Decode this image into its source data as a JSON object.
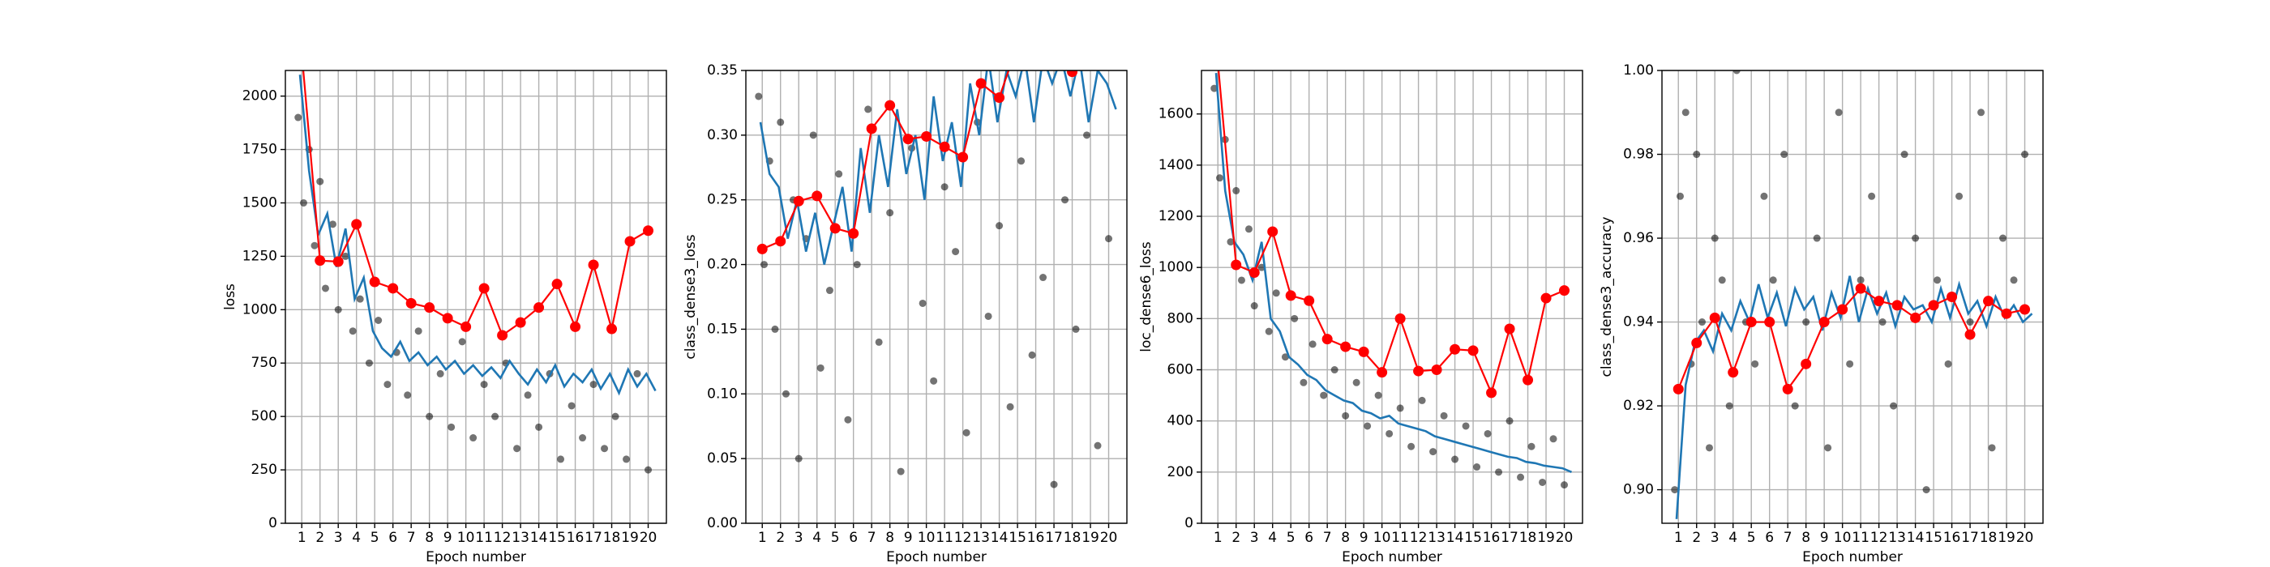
{
  "chart_data": [
    {
      "type": "line",
      "xlabel": "Epoch number",
      "ylabel": "loss",
      "grid": true,
      "xlim": [
        0.1,
        21.0
      ],
      "ylim": [
        0,
        2120
      ],
      "xticks": [
        1,
        2,
        3,
        4,
        5,
        6,
        7,
        8,
        9,
        10,
        11,
        12,
        13,
        14,
        15,
        16,
        17,
        18,
        19,
        20
      ],
      "yticks": [
        0,
        250,
        500,
        750,
        1000,
        1250,
        1500,
        1750,
        2000
      ],
      "series": [
        {
          "style": "points",
          "color": "#000000",
          "x": [
            0.8,
            1.1,
            1.4,
            1.7,
            2.0,
            2.3,
            2.7,
            3.0,
            3.4,
            3.8,
            4.2,
            4.7,
            5.2,
            5.7,
            6.2,
            6.8,
            7.4,
            8.0,
            8.6,
            9.2,
            9.8,
            10.4,
            11.0,
            11.6,
            12.2,
            12.8,
            13.4,
            14.0,
            14.6,
            15.2,
            15.8,
            16.4,
            17.0,
            17.6,
            18.2,
            18.8,
            19.4,
            20.0
          ],
          "values": [
            1900,
            1500,
            1750,
            1300,
            1600,
            1100,
            1400,
            1000,
            1250,
            900,
            1050,
            750,
            950,
            650,
            800,
            600,
            900,
            500,
            700,
            450,
            850,
            400,
            650,
            500,
            750,
            350,
            600,
            450,
            700,
            300,
            550,
            400,
            650,
            350,
            500,
            300,
            700,
            250
          ]
        },
        {
          "style": "line",
          "color": "#1f77b4",
          "x": [
            0.9,
            1.4,
            1.9,
            2.4,
            2.9,
            3.4,
            3.9,
            4.4,
            4.9,
            5.4,
            5.9,
            6.4,
            6.9,
            7.4,
            7.9,
            8.4,
            8.9,
            9.4,
            9.9,
            10.4,
            10.9,
            11.4,
            11.9,
            12.4,
            12.9,
            13.4,
            13.9,
            14.4,
            14.9,
            15.4,
            15.9,
            16.4,
            16.9,
            17.4,
            17.9,
            18.4,
            18.9,
            19.4,
            19.9,
            20.4
          ],
          "values": [
            2100,
            1650,
            1350,
            1450,
            1200,
            1380,
            1050,
            1150,
            900,
            820,
            780,
            850,
            760,
            800,
            740,
            780,
            720,
            760,
            700,
            740,
            690,
            730,
            680,
            760,
            700,
            650,
            720,
            660,
            740,
            640,
            700,
            660,
            720,
            630,
            700,
            610,
            720,
            640,
            700,
            620
          ]
        },
        {
          "style": "markers",
          "color": "#ff0000",
          "x": [
            1,
            2,
            3,
            4,
            5,
            6,
            7,
            8,
            9,
            10,
            11,
            12,
            13,
            14,
            15,
            16,
            17,
            18,
            19,
            20
          ],
          "values": [
            2200,
            1230,
            1225,
            1400,
            1130,
            1100,
            1030,
            1010,
            960,
            920,
            1100,
            880,
            940,
            1010,
            1120,
            920,
            1210,
            910,
            1320,
            1370
          ]
        }
      ]
    },
    {
      "type": "line",
      "xlabel": "Epoch number",
      "ylabel": "class_dense3_loss",
      "grid": true,
      "xlim": [
        0.1,
        21.0
      ],
      "ylim": [
        0,
        0.35
      ],
      "xticks": [
        1,
        2,
        3,
        4,
        5,
        6,
        7,
        8,
        9,
        10,
        11,
        12,
        13,
        14,
        15,
        16,
        17,
        18,
        19,
        20
      ],
      "yticks": [
        {
          "value": 0,
          "label": "0.00"
        },
        {
          "value": 0.05,
          "label": "0.05"
        },
        {
          "value": 0.1,
          "label": "0.10"
        },
        {
          "value": 0.15,
          "label": "0.15"
        },
        {
          "value": 0.2,
          "label": "0.20"
        },
        {
          "value": 0.25,
          "label": "0.25"
        },
        {
          "value": 0.3,
          "label": "0.30"
        },
        {
          "value": 0.35,
          "label": "0.35"
        }
      ],
      "series": [
        {
          "style": "points",
          "color": "#000000",
          "x": [
            0.8,
            1.1,
            1.4,
            1.7,
            2.0,
            2.3,
            2.7,
            3.0,
            3.4,
            3.8,
            4.2,
            4.7,
            5.2,
            5.7,
            6.2,
            6.8,
            7.4,
            8.0,
            8.6,
            9.2,
            9.8,
            10.4,
            11.0,
            11.6,
            12.2,
            12.8,
            13.4,
            14.0,
            14.6,
            15.2,
            15.8,
            16.4,
            17.0,
            17.6,
            18.2,
            18.8,
            19.4,
            20.0
          ],
          "values": [
            0.33,
            0.2,
            0.28,
            0.15,
            0.31,
            0.1,
            0.25,
            0.05,
            0.22,
            0.3,
            0.12,
            0.18,
            0.27,
            0.08,
            0.2,
            0.32,
            0.14,
            0.24,
            0.04,
            0.29,
            0.17,
            0.11,
            0.26,
            0.21,
            0.07,
            0.31,
            0.16,
            0.23,
            0.09,
            0.28,
            0.13,
            0.19,
            0.03,
            0.25,
            0.15,
            0.3,
            0.06,
            0.22
          ]
        },
        {
          "style": "line",
          "color": "#1f77b4",
          "x": [
            0.9,
            1.4,
            1.9,
            2.4,
            2.9,
            3.4,
            3.9,
            4.4,
            4.9,
            5.4,
            5.9,
            6.4,
            6.9,
            7.4,
            7.9,
            8.4,
            8.9,
            9.4,
            9.9,
            10.4,
            10.9,
            11.4,
            11.9,
            12.4,
            12.9,
            13.4,
            13.9,
            14.4,
            14.9,
            15.4,
            15.9,
            16.4,
            16.9,
            17.4,
            17.9,
            18.4,
            18.9,
            19.4,
            19.9,
            20.4
          ],
          "values": [
            0.31,
            0.27,
            0.26,
            0.22,
            0.25,
            0.21,
            0.24,
            0.2,
            0.23,
            0.26,
            0.21,
            0.29,
            0.24,
            0.3,
            0.26,
            0.32,
            0.27,
            0.3,
            0.25,
            0.33,
            0.28,
            0.31,
            0.26,
            0.34,
            0.3,
            0.36,
            0.31,
            0.35,
            0.33,
            0.36,
            0.31,
            0.36,
            0.34,
            0.36,
            0.33,
            0.36,
            0.31,
            0.35,
            0.34,
            0.32
          ]
        },
        {
          "style": "markers",
          "color": "#ff0000",
          "x": [
            1,
            2,
            3,
            4,
            5,
            6,
            7,
            8,
            9,
            10,
            11,
            12,
            13,
            14,
            15,
            16,
            17,
            18,
            19,
            20
          ],
          "values": [
            0.212,
            0.218,
            0.249,
            0.253,
            0.228,
            0.224,
            0.305,
            0.323,
            0.297,
            0.299,
            0.291,
            0.283,
            0.34,
            0.329,
            0.37,
            0.37,
            0.37,
            0.349,
            0.37,
            0.37
          ]
        }
      ]
    },
    {
      "type": "line",
      "xlabel": "Epoch number",
      "ylabel": "loc_dense6_loss",
      "grid": true,
      "xlim": [
        0.1,
        21.0
      ],
      "ylim": [
        0,
        1770
      ],
      "xticks": [
        1,
        2,
        3,
        4,
        5,
        6,
        7,
        8,
        9,
        10,
        11,
        12,
        13,
        14,
        15,
        16,
        17,
        18,
        19,
        20
      ],
      "yticks": [
        0,
        200,
        400,
        600,
        800,
        1000,
        1200,
        1400,
        1600
      ],
      "series": [
        {
          "style": "points",
          "color": "#000000",
          "x": [
            0.8,
            1.1,
            1.4,
            1.7,
            2.0,
            2.3,
            2.7,
            3.0,
            3.4,
            3.8,
            4.2,
            4.7,
            5.2,
            5.7,
            6.2,
            6.8,
            7.4,
            8.0,
            8.6,
            9.2,
            9.8,
            10.4,
            11.0,
            11.6,
            12.2,
            12.8,
            13.4,
            14.0,
            14.6,
            15.2,
            15.8,
            16.4,
            17.0,
            17.6,
            18.2,
            18.8,
            19.4,
            20.0
          ],
          "values": [
            1700,
            1350,
            1500,
            1100,
            1300,
            950,
            1150,
            850,
            1000,
            750,
            900,
            650,
            800,
            550,
            700,
            500,
            600,
            420,
            550,
            380,
            500,
            350,
            450,
            300,
            480,
            280,
            420,
            250,
            380,
            220,
            350,
            200,
            400,
            180,
            300,
            160,
            330,
            150
          ]
        },
        {
          "style": "line",
          "color": "#1f77b4",
          "x": [
            0.9,
            1.4,
            1.9,
            2.4,
            2.9,
            3.4,
            3.9,
            4.4,
            4.9,
            5.4,
            5.9,
            6.4,
            6.9,
            7.4,
            7.9,
            8.4,
            8.9,
            9.4,
            9.9,
            10.4,
            10.9,
            11.4,
            11.9,
            12.4,
            12.9,
            13.4,
            13.9,
            14.4,
            14.9,
            15.4,
            15.9,
            16.4,
            16.9,
            17.4,
            17.9,
            18.4,
            18.9,
            19.4,
            19.9,
            20.4
          ],
          "values": [
            1760,
            1300,
            1100,
            1050,
            950,
            1100,
            800,
            750,
            650,
            620,
            580,
            560,
            520,
            500,
            480,
            470,
            440,
            430,
            410,
            420,
            390,
            380,
            370,
            360,
            340,
            330,
            320,
            310,
            300,
            290,
            280,
            270,
            260,
            255,
            240,
            235,
            225,
            220,
            215,
            200
          ]
        },
        {
          "style": "markers",
          "color": "#ff0000",
          "x": [
            1,
            2,
            3,
            4,
            5,
            6,
            7,
            8,
            9,
            10,
            11,
            12,
            13,
            14,
            15,
            16,
            17,
            18,
            19,
            20
          ],
          "values": [
            1800,
            1010,
            980,
            1140,
            890,
            870,
            720,
            690,
            670,
            590,
            800,
            595,
            600,
            680,
            675,
            510,
            760,
            560,
            880,
            910
          ]
        }
      ]
    },
    {
      "type": "line",
      "xlabel": "Epoch number",
      "ylabel": "class_dense3_accuracy",
      "grid": true,
      "xlim": [
        0.1,
        21.0
      ],
      "ylim": [
        0.892,
        1.0
      ],
      "xticks": [
        1,
        2,
        3,
        4,
        5,
        6,
        7,
        8,
        9,
        10,
        11,
        12,
        13,
        14,
        15,
        16,
        17,
        18,
        19,
        20
      ],
      "yticks": [
        {
          "value": 0.9,
          "label": "0.90"
        },
        {
          "value": 0.92,
          "label": "0.92"
        },
        {
          "value": 0.94,
          "label": "0.94"
        },
        {
          "value": 0.96,
          "label": "0.96"
        },
        {
          "value": 0.98,
          "label": "0.98"
        },
        {
          "value": 1.0,
          "label": "1.00"
        }
      ],
      "series": [
        {
          "style": "points",
          "color": "#000000",
          "x": [
            0.8,
            1.1,
            1.4,
            1.7,
            2.0,
            2.3,
            2.7,
            3.0,
            3.4,
            3.8,
            4.2,
            4.7,
            5.2,
            5.7,
            6.2,
            6.8,
            7.4,
            8.0,
            8.6,
            9.2,
            9.8,
            10.4,
            11.0,
            11.6,
            12.2,
            12.8,
            13.4,
            14.0,
            14.6,
            15.2,
            15.8,
            16.4,
            17.0,
            17.6,
            18.2,
            18.8,
            19.4,
            20.0
          ],
          "values": [
            0.9,
            0.97,
            0.99,
            0.93,
            0.98,
            0.94,
            0.91,
            0.96,
            0.95,
            0.92,
            1.0,
            0.94,
            0.93,
            0.97,
            0.95,
            0.98,
            0.92,
            0.94,
            0.96,
            0.91,
            0.99,
            0.93,
            0.95,
            0.97,
            0.94,
            0.92,
            0.98,
            0.96,
            0.9,
            0.95,
            0.93,
            0.97,
            0.94,
            0.99,
            0.91,
            0.96,
            0.95,
            0.98
          ]
        },
        {
          "style": "line",
          "color": "#1f77b4",
          "x": [
            0.9,
            1.4,
            1.9,
            2.4,
            2.9,
            3.4,
            3.9,
            4.4,
            4.9,
            5.4,
            5.9,
            6.4,
            6.9,
            7.4,
            7.9,
            8.4,
            8.9,
            9.4,
            9.9,
            10.4,
            10.9,
            11.4,
            11.9,
            12.4,
            12.9,
            13.4,
            13.9,
            14.4,
            14.9,
            15.4,
            15.9,
            16.4,
            16.9,
            17.4,
            17.9,
            18.4,
            18.9,
            19.4,
            19.9,
            20.4
          ],
          "values": [
            0.893,
            0.925,
            0.935,
            0.938,
            0.933,
            0.942,
            0.938,
            0.945,
            0.94,
            0.949,
            0.941,
            0.947,
            0.939,
            0.948,
            0.943,
            0.946,
            0.938,
            0.947,
            0.941,
            0.951,
            0.94,
            0.948,
            0.942,
            0.947,
            0.939,
            0.946,
            0.943,
            0.944,
            0.94,
            0.948,
            0.941,
            0.949,
            0.942,
            0.945,
            0.939,
            0.946,
            0.941,
            0.944,
            0.94,
            0.942
          ]
        },
        {
          "style": "markers",
          "color": "#ff0000",
          "x": [
            1,
            2,
            3,
            4,
            5,
            6,
            7,
            8,
            9,
            10,
            11,
            12,
            13,
            14,
            15,
            16,
            17,
            18,
            19,
            20
          ],
          "values": [
            0.924,
            0.935,
            0.941,
            0.928,
            0.94,
            0.94,
            0.924,
            0.93,
            0.94,
            0.943,
            0.948,
            0.945,
            0.944,
            0.941,
            0.944,
            0.946,
            0.937,
            0.945,
            0.942,
            0.943
          ]
        }
      ]
    }
  ]
}
